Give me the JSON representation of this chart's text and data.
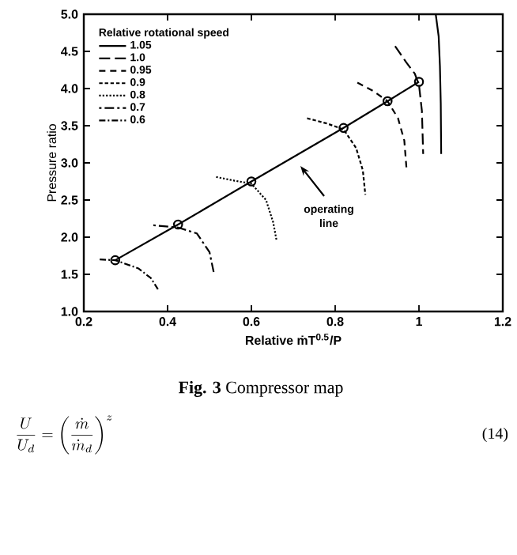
{
  "chart_data": {
    "type": "line",
    "xlabel": "Relative ṁT$^{0.5}$/P",
    "ylabel": "Pressure ratio",
    "legend_title": "Relative rotational speed",
    "xlim": [
      0.2,
      1.2
    ],
    "xticks": [
      0.2,
      0.4,
      0.6,
      0.8,
      1,
      1.2
    ],
    "ylim": [
      1.0,
      5.0
    ],
    "yticks": [
      {
        "value": 1,
        "label": "1.0"
      },
      1.5,
      {
        "value": 2,
        "label": "2.0"
      },
      2.5,
      {
        "value": 3,
        "label": "3.0"
      },
      3.5,
      {
        "value": 4,
        "label": "4.0"
      },
      4.5,
      {
        "value": 5,
        "label": "5.0"
      }
    ],
    "legend": "top left",
    "grid": false,
    "series": [
      {
        "name": "1.05",
        "color": "#000000",
        "line_style": "solid",
        "x": [
          1.04,
          1.047,
          1.05,
          1.052,
          1.053
        ],
        "values": [
          5.0,
          4.7,
          4.3,
          3.8,
          3.12
        ]
      },
      {
        "name": "1.0",
        "color": "#000000",
        "line_style": "long dashed",
        "x": [
          0.943,
          0.97,
          0.99,
          1.0,
          1.007,
          1.01
        ],
        "values": [
          4.57,
          4.35,
          4.2,
          4.05,
          3.7,
          3.12
        ]
      },
      {
        "name": "0.95",
        "color": "#000000",
        "line_style": "dashed",
        "x": [
          0.853,
          0.89,
          0.925,
          0.95,
          0.965,
          0.97
        ],
        "values": [
          4.08,
          3.97,
          3.83,
          3.6,
          3.3,
          2.94
        ]
      },
      {
        "name": "0.9",
        "color": "#000000",
        "line_style": "densely dashed",
        "x": [
          0.733,
          0.78,
          0.82,
          0.85,
          0.866,
          0.872
        ],
        "values": [
          3.6,
          3.53,
          3.45,
          3.2,
          2.9,
          2.57
        ]
      },
      {
        "name": "0.8",
        "color": "#000000",
        "line_style": "dotted",
        "x": [
          0.516,
          0.56,
          0.6,
          0.635,
          0.652,
          0.66
        ],
        "values": [
          2.81,
          2.76,
          2.72,
          2.5,
          2.2,
          1.96
        ]
      },
      {
        "name": "0.7",
        "color": "#000000",
        "line_style": "dash dot long",
        "x": [
          0.366,
          0.425,
          0.47,
          0.5,
          0.51
        ],
        "values": [
          2.16,
          2.13,
          2.05,
          1.8,
          1.53
        ]
      },
      {
        "name": "0.6",
        "color": "#000000",
        "line_style": "dash dot",
        "x": [
          0.238,
          0.275,
          0.33,
          0.36,
          0.377
        ],
        "values": [
          1.7,
          1.69,
          1.58,
          1.45,
          1.3
        ]
      },
      {
        "color": "#000000",
        "line_style": "solid",
        "marker": "circle",
        "x": [
          0.275,
          0.425,
          0.6,
          0.82,
          0.925,
          1.0
        ],
        "values": [
          1.69,
          2.17,
          2.75,
          3.47,
          3.83,
          4.09
        ]
      }
    ],
    "annotations": [
      "operating line",
      "**Fig. 3** Compressor map",
      "\\frac{U}{U_d} = \\left(\\frac{\\dot m}{\\dot m_d}\\right)^z",
      "(14)"
    ]
  }
}
